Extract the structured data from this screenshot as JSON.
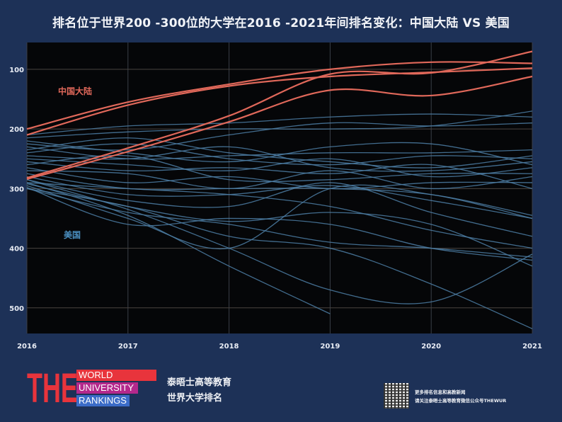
{
  "title": "排名位于世界200 -300位的大学在2016 -2021年间排名变化：中国大陆 VS 美国",
  "chart_data": {
    "type": "line",
    "title": "排名位于世界200 -300位的大学在2016 -2021年间排名变化：中国大陆 VS 美国",
    "x": [
      "2016",
      "2017",
      "2018",
      "2019",
      "2020",
      "2021"
    ],
    "y_ticks": [
      100,
      200,
      300,
      400,
      500
    ],
    "ylim": [
      543,
      55
    ],
    "y_reversed": true,
    "grid": true,
    "annotations": [
      {
        "text": "中国大陆",
        "color": "#e0685a"
      },
      {
        "text": "美国",
        "color": "#4a8fc0"
      }
    ],
    "colors": {
      "中国大陆": "#e0685a",
      "美国": "#4d7fa6",
      "background": "#050608",
      "page": "#1d3157"
    },
    "groups": [
      {
        "name": "中国大陆",
        "series": [
          [
            200,
            155,
            125,
            100,
            88,
            90
          ],
          [
            210,
            160,
            128,
            112,
            105,
            98
          ],
          [
            282,
            232,
            178,
            108,
            106,
            70
          ],
          [
            284,
            238,
            188,
            135,
            144,
            112
          ]
        ]
      },
      {
        "name": "美国",
        "series": [
          [
            210,
            195,
            190,
            180,
            175,
            180
          ],
          [
            215,
            205,
            200,
            200,
            195,
            170
          ],
          [
            225,
            235,
            210,
            190,
            195,
            190
          ],
          [
            230,
            250,
            245,
            240,
            240,
            235
          ],
          [
            240,
            225,
            250,
            260,
            245,
            250
          ],
          [
            245,
            250,
            230,
            265,
            270,
            255
          ],
          [
            250,
            260,
            270,
            250,
            280,
            265
          ],
          [
            255,
            270,
            265,
            275,
            260,
            300
          ],
          [
            260,
            245,
            285,
            285,
            275,
            275
          ],
          [
            265,
            290,
            280,
            300,
            290,
            290
          ],
          [
            270,
            275,
            300,
            270,
            300,
            280
          ],
          [
            275,
            300,
            300,
            300,
            310,
            345
          ],
          [
            280,
            310,
            310,
            295,
            320,
            350
          ],
          [
            285,
            320,
            330,
            290,
            340,
            380
          ],
          [
            290,
            300,
            310,
            330,
            370,
            400
          ],
          [
            292,
            330,
            355,
            340,
            360,
            430
          ],
          [
            295,
            350,
            400,
            300,
            310,
            350
          ],
          [
            298,
            360,
            350,
            360,
            400,
            420
          ],
          [
            300,
            340,
            360,
            390,
            400,
            415
          ],
          [
            285,
            335,
            400,
            470,
            490,
            410
          ],
          [
            290,
            345,
            430,
            510,
            null,
            null
          ],
          [
            300,
            330,
            380,
            400,
            460,
            535
          ],
          [
            220,
            240,
            255,
            230,
            225,
            260
          ],
          [
            235,
            215,
            240,
            255,
            265,
            245
          ]
        ]
      }
    ]
  },
  "logo": {
    "letters": "THE",
    "line1": "WORLD",
    "line2": "UNIVERSITY",
    "line3": "RANKINGS"
  },
  "brand": {
    "line1": "泰晤士高等教育",
    "line2": "世界大学排名"
  },
  "footnote": {
    "line1": "更多排名信息和高教新闻",
    "line2": "请关注泰晤士高等教育微信公众号THEWUR"
  }
}
